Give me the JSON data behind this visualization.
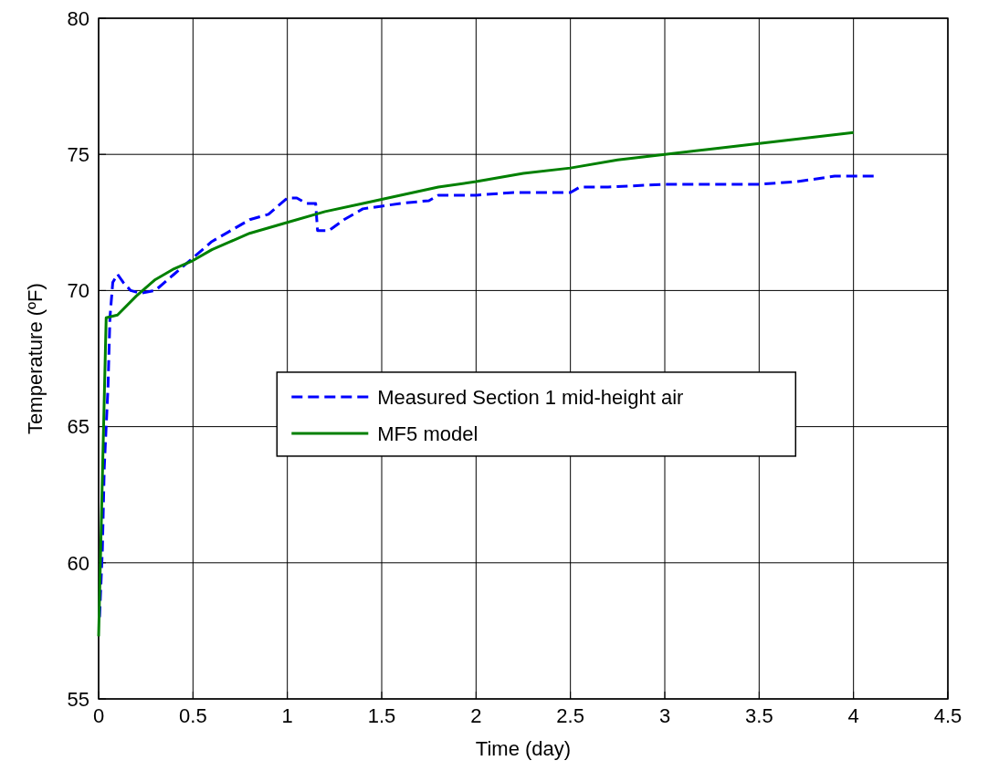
{
  "chart_data": {
    "type": "line",
    "xlabel": "Time (day)",
    "ylabel": "Temperature (ºF)",
    "xlim": [
      0,
      4.5
    ],
    "xticks": [
      0,
      0.5,
      1,
      1.5,
      2,
      2.5,
      3,
      3.5,
      4,
      4.5
    ],
    "ylim": [
      55,
      80
    ],
    "yticks": [
      55,
      60,
      65,
      70,
      75,
      80
    ],
    "grid": true,
    "legend": "center",
    "series": [
      {
        "name": "Measured Section 1 mid-height air",
        "color": "#0000ff",
        "line_style": "dashed",
        "x": [
          0.005,
          0.02,
          0.03,
          0.05,
          0.06,
          0.075,
          0.1,
          0.13,
          0.17,
          0.22,
          0.3,
          0.4,
          0.5,
          0.6,
          0.7,
          0.8,
          0.9,
          1.0,
          1.05,
          1.1,
          1.15,
          1.16,
          1.22,
          1.3,
          1.4,
          1.5,
          1.6,
          1.75,
          1.8,
          2.0,
          2.2,
          2.5,
          2.55,
          2.7,
          3.0,
          3.5,
          3.7,
          3.9,
          4.13
        ],
        "values": [
          58.0,
          60.5,
          63.5,
          66.5,
          69.0,
          70.3,
          70.6,
          70.3,
          70.0,
          69.9,
          70.0,
          70.6,
          71.2,
          71.8,
          72.2,
          72.6,
          72.8,
          73.4,
          73.4,
          73.2,
          73.2,
          72.2,
          72.2,
          72.6,
          73.0,
          73.1,
          73.2,
          73.3,
          73.5,
          73.5,
          73.6,
          73.6,
          73.8,
          73.8,
          73.9,
          73.9,
          74.0,
          74.2,
          74.2
        ]
      },
      {
        "name": "MF5 model",
        "color": "#008000",
        "line_style": "solid",
        "x": [
          0,
          0.04,
          0.1,
          0.2,
          0.3,
          0.4,
          0.5,
          0.6,
          0.7,
          0.8,
          0.9,
          1.0,
          1.2,
          1.4,
          1.6,
          1.8,
          2.0,
          2.25,
          2.5,
          2.75,
          3.0,
          3.25,
          3.5,
          3.75,
          4.0
        ],
        "values": [
          57.3,
          69.0,
          69.1,
          69.8,
          70.4,
          70.8,
          71.1,
          71.5,
          71.8,
          72.1,
          72.3,
          72.5,
          72.9,
          73.2,
          73.5,
          73.8,
          74.0,
          74.3,
          74.5,
          74.8,
          75.0,
          75.2,
          75.4,
          75.6,
          75.8
        ]
      }
    ]
  }
}
